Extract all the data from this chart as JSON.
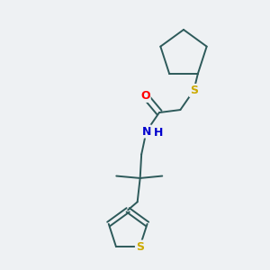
{
  "background_color": "#eef1f3",
  "bond_color": "#2d5a5a",
  "atom_colors": {
    "O": "#ff0000",
    "N": "#0000cd",
    "S": "#ccaa00",
    "C": "#2d5a5a"
  },
  "fig_size": [
    3.0,
    3.0
  ],
  "dpi": 100,
  "xlim": [
    0,
    10
  ],
  "ylim": [
    0,
    10
  ]
}
